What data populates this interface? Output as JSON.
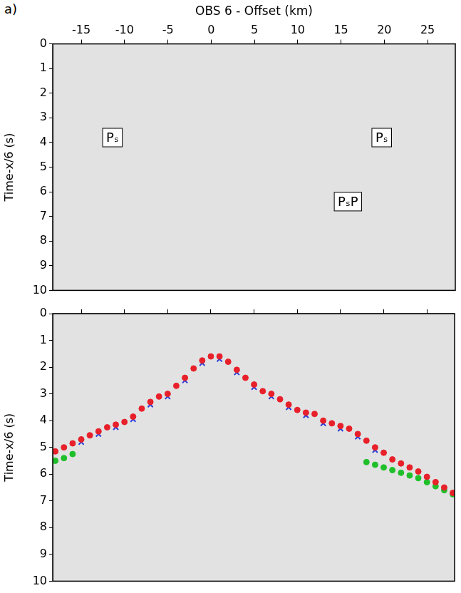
{
  "chart_data": [
    {
      "type": "scatter",
      "panel_label": "a)",
      "x_label": "OBS 6 - Offset (km)",
      "y_label": "Time-x/6 (s)",
      "xlim": [
        -18.3,
        28.2
      ],
      "xticks": [
        -15,
        -10,
        -5,
        0,
        5,
        10,
        15,
        20,
        25
      ],
      "ylim": [
        0,
        10
      ],
      "yticks": [
        0,
        1,
        2,
        3,
        4,
        5,
        6,
        7,
        8,
        9,
        10
      ],
      "grid": false,
      "annotations": [
        {
          "text": "Pₛ",
          "x": -11.4,
          "y": 3.8
        },
        {
          "text": "Pₛ",
          "x": 19.7,
          "y": 3.8
        },
        {
          "text": "PₛP",
          "x": 15.8,
          "y": 6.4
        }
      ]
    },
    {
      "type": "scatter",
      "y_label": "Time-x/6 (s)",
      "xlim": [
        -18.3,
        28.2
      ],
      "xticks": [
        -15,
        -10,
        -5,
        0,
        5,
        10,
        15,
        20,
        25
      ],
      "ylim": [
        0,
        10
      ],
      "yticks": [
        0,
        1,
        2,
        3,
        4,
        5,
        6,
        7,
        8,
        9,
        10
      ],
      "grid": false,
      "tick_labels": "y",
      "series": [
        {
          "color": "#e8202a",
          "marker": "circle",
          "x": [
            -18,
            -17,
            -16,
            -15,
            -14,
            -13,
            -12,
            -11,
            -10,
            -9,
            -8,
            -7,
            -6,
            -5,
            -4,
            -3,
            -2,
            -1,
            0,
            1,
            2,
            3,
            4,
            5,
            6,
            7,
            8,
            9,
            10,
            11,
            12,
            13,
            14,
            15,
            16,
            17,
            18,
            19,
            20,
            21,
            22,
            23,
            24,
            25,
            26,
            27,
            28
          ],
          "values": [
            5.15,
            5.0,
            4.85,
            4.7,
            4.55,
            4.4,
            4.25,
            4.15,
            4.05,
            3.85,
            3.55,
            3.3,
            3.1,
            3.0,
            2.7,
            2.4,
            2.05,
            1.75,
            1.6,
            1.6,
            1.8,
            2.1,
            2.4,
            2.65,
            2.9,
            3.0,
            3.2,
            3.4,
            3.6,
            3.7,
            3.75,
            4.0,
            4.1,
            4.2,
            4.3,
            4.5,
            4.75,
            5.0,
            5.2,
            5.45,
            5.6,
            5.75,
            5.9,
            6.1,
            6.3,
            6.5,
            6.7
          ]
        },
        {
          "color": "#2a3cd8",
          "marker": "cross",
          "x": [
            -15,
            -13,
            -11,
            -9,
            -7,
            -5,
            -3,
            -1,
            1,
            3,
            5,
            7,
            9,
            11,
            13,
            15,
            17,
            19
          ],
          "values": [
            4.8,
            4.5,
            4.25,
            3.95,
            3.4,
            3.1,
            2.5,
            1.85,
            1.7,
            2.2,
            2.75,
            3.1,
            3.5,
            3.8,
            4.1,
            4.3,
            4.6,
            5.1
          ]
        },
        {
          "color": "#1fbf2a",
          "marker": "circle",
          "x": [
            -18,
            -17,
            -16,
            18,
            19,
            20,
            21,
            22,
            23,
            24,
            25,
            26,
            27,
            28
          ],
          "values": [
            5.5,
            5.4,
            5.25,
            5.55,
            5.65,
            5.75,
            5.85,
            5.95,
            6.05,
            6.15,
            6.3,
            6.45,
            6.6,
            6.75
          ]
        }
      ]
    }
  ]
}
